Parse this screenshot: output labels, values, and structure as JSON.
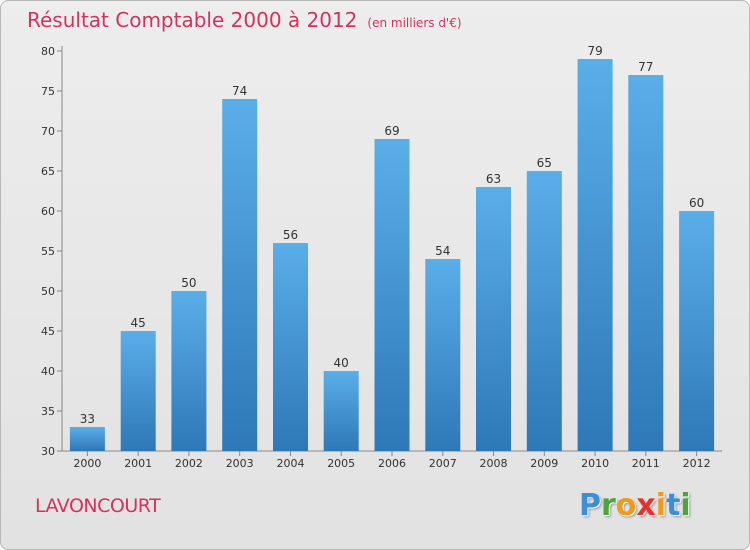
{
  "title": "Résultat Comptable 2000 à 2012",
  "subtitle": "(en milliers d'€)",
  "location": "LAVONCOURT",
  "brand": {
    "letters": [
      "P",
      "r",
      "o",
      "x",
      "i",
      "t",
      "i"
    ],
    "colors": [
      "#3a8fd8",
      "#4da43a",
      "#f09a1a",
      "#e8302a",
      "#f09a1a",
      "#3a8fd8",
      "#4da43a"
    ]
  },
  "colors": {
    "accent": "#d4325e",
    "bar_top": "#5aaee8",
    "bar_bottom": "#2e78b8"
  },
  "chart_data": {
    "type": "bar",
    "title": "Résultat Comptable 2000 à 2012",
    "subtitle": "(en milliers d'€)",
    "xlabel": "",
    "ylabel": "",
    "categories": [
      "2000",
      "2001",
      "2002",
      "2003",
      "2004",
      "2005",
      "2006",
      "2007",
      "2008",
      "2009",
      "2010",
      "2011",
      "2012"
    ],
    "values": [
      33,
      45,
      50,
      74,
      56,
      40,
      69,
      54,
      63,
      65,
      79,
      77,
      60
    ],
    "ylim": [
      30,
      80
    ],
    "yticks": [
      30,
      35,
      40,
      45,
      50,
      55,
      60,
      65,
      70,
      75,
      80
    ],
    "grid": false,
    "legend": "none"
  }
}
